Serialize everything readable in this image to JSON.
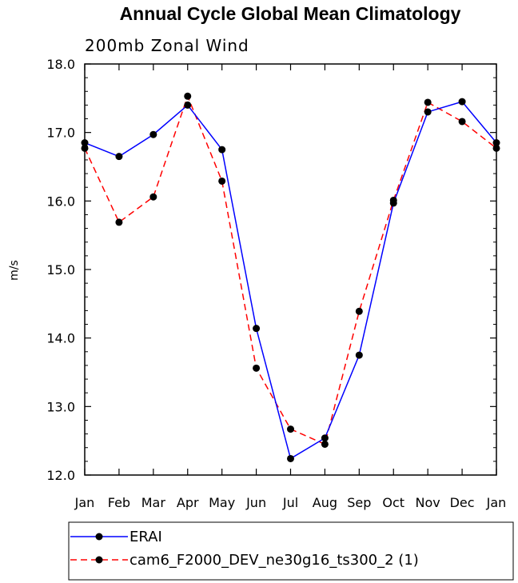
{
  "chart_data": {
    "type": "line",
    "title": "Annual Cycle Global Mean Climatology",
    "subtitle": "200mb Zonal Wind",
    "xlabel": "",
    "ylabel": "m/s",
    "categories": [
      "Jan",
      "Feb",
      "Mar",
      "Apr",
      "May",
      "Jun",
      "Jul",
      "Aug",
      "Sep",
      "Oct",
      "Nov",
      "Dec",
      "Jan"
    ],
    "ylim": [
      12.0,
      18.0
    ],
    "yticks": [
      "12.0",
      "13.0",
      "14.0",
      "15.0",
      "16.0",
      "17.0",
      "18.0"
    ],
    "series": [
      {
        "name": "ERAI",
        "color": "#0000ff",
        "dash": "solid",
        "values": [
          16.85,
          16.65,
          16.97,
          17.4,
          16.75,
          14.14,
          12.24,
          12.54,
          13.75,
          15.97,
          17.3,
          17.45,
          16.85
        ]
      },
      {
        "name": "cam6_F2000_DEV_ne30g16_ts300_2 (1)",
        "color": "#ff0000",
        "dash": "dashed",
        "values": [
          16.77,
          15.69,
          16.06,
          17.53,
          16.29,
          13.56,
          12.67,
          12.45,
          14.39,
          16.01,
          17.44,
          17.16,
          16.77
        ]
      }
    ],
    "legend_position": "bottom",
    "marker": "filled-circle",
    "marker_color": "#000000"
  }
}
